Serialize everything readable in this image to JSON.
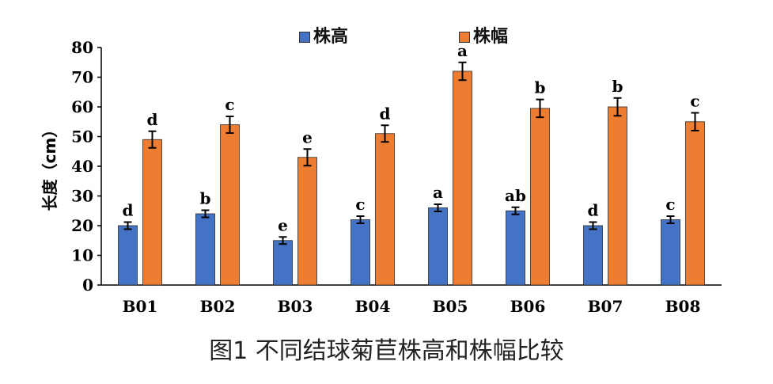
{
  "chart_data": {
    "type": "bar",
    "categories": [
      "B01",
      "B02",
      "B03",
      "B04",
      "B05",
      "B06",
      "B07",
      "B08"
    ],
    "series": [
      {
        "name": "株高",
        "color": "#4472c4",
        "values": [
          20,
          24,
          15,
          22,
          26,
          25,
          20,
          22
        ],
        "errors": [
          1.2,
          1.2,
          1.2,
          1.2,
          1.2,
          1.2,
          1.2,
          1.2
        ],
        "labels": [
          "d",
          "b",
          "e",
          "c",
          "a",
          "ab",
          "d",
          "c"
        ]
      },
      {
        "name": "株幅",
        "color": "#ed7d31",
        "values": [
          49,
          54,
          43,
          51,
          72,
          59.5,
          60,
          55
        ],
        "errors": [
          2.8,
          2.8,
          2.8,
          2.8,
          3,
          3,
          3,
          3
        ],
        "labels": [
          "d",
          "c",
          "e",
          "d",
          "a",
          "b",
          "b",
          "c"
        ]
      }
    ],
    "ylabel": "长度（cm）",
    "ylim": [
      0,
      80
    ],
    "yticks": [
      0,
      10,
      20,
      30,
      40,
      50,
      60,
      70,
      80
    ],
    "grid": false,
    "legend": "top-center"
  },
  "caption": "图1  不同结球菊苣株高和株幅比较"
}
